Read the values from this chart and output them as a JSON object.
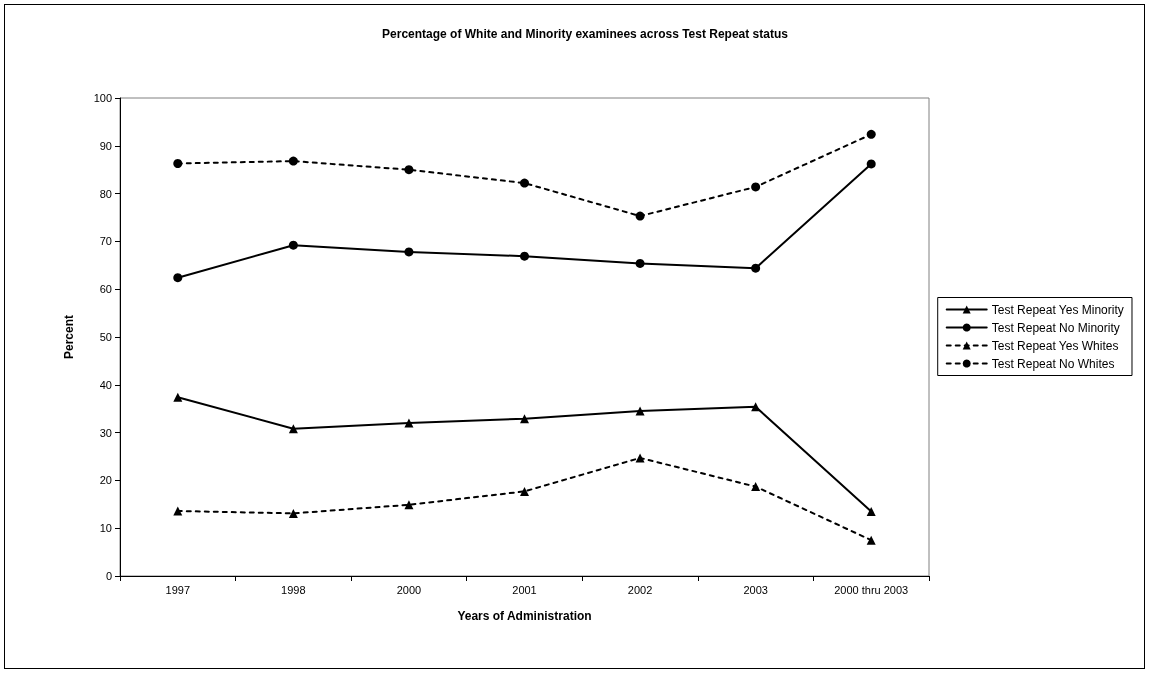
{
  "chart_data": {
    "type": "line",
    "title": "Percentage of White and Minority examinees across Test Repeat status",
    "xlabel": "Years of Administration",
    "ylabel": "Percent",
    "categories": [
      "1997",
      "1998",
      "2000",
      "2001",
      "2002",
      "2003",
      "2000 thru 2003"
    ],
    "series": [
      {
        "name": "Test Repeat Yes Minority",
        "color": "#000000",
        "marker": "triangle",
        "line_style": "solid",
        "values": [
          37.4,
          30.8,
          32.0,
          32.9,
          34.5,
          35.4,
          13.5
        ]
      },
      {
        "name": "Test Repeat No Minority",
        "color": "#000000",
        "marker": "circle",
        "line_style": "solid",
        "values": [
          62.4,
          69.2,
          67.8,
          66.9,
          65.4,
          64.4,
          86.2
        ]
      },
      {
        "name": "Test Repeat Yes Whites",
        "color": "#000000",
        "marker": "triangle",
        "line_style": "dashed",
        "values": [
          13.6,
          13.1,
          14.9,
          17.7,
          24.7,
          18.7,
          7.5
        ]
      },
      {
        "name": "Test Repeat No Whites",
        "color": "#000000",
        "marker": "circle",
        "line_style": "dashed",
        "values": [
          86.3,
          86.8,
          85.0,
          82.2,
          75.3,
          81.4,
          92.4
        ]
      }
    ],
    "ylim": [
      0,
      100
    ],
    "yticks": [
      0,
      10,
      20,
      30,
      40,
      50,
      60,
      70,
      80,
      90,
      100
    ],
    "grid": false,
    "legend": "right"
  }
}
